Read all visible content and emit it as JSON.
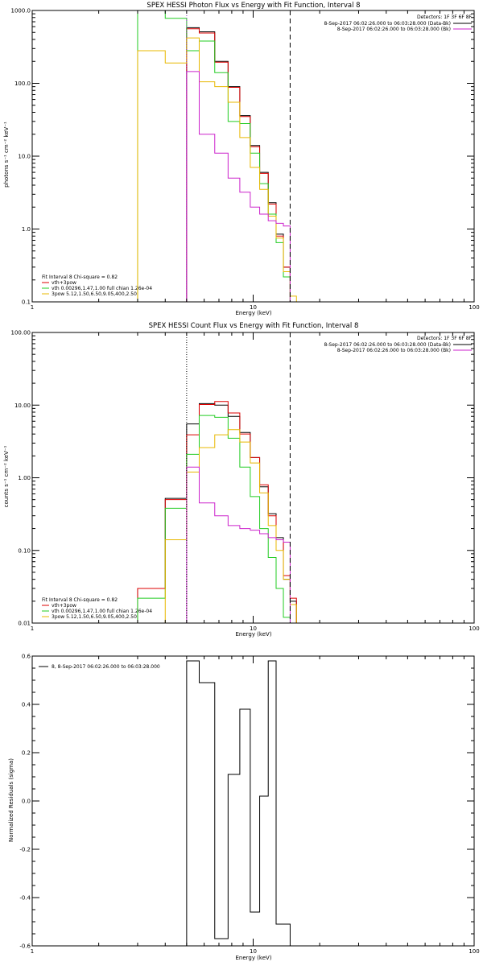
{
  "chart_data": [
    {
      "type": "line",
      "title": "SPEX HESSI Photon Flux vs Energy with Fit Function, Interval 8",
      "xlabel": "Energy (keV)",
      "ylabel": "photons s⁻¹ cm⁻² keV⁻¹",
      "xscale": "log",
      "yscale": "log",
      "xlim": [
        1,
        100
      ],
      "ylim": [
        0.1,
        1000
      ],
      "xticks": [
        {
          "v": 1,
          "label": "1"
        },
        {
          "v": 10,
          "label": "10"
        },
        {
          "v": 100,
          "label": "100"
        }
      ],
      "yticks": [
        {
          "v": 0.1,
          "label": "0.1"
        },
        {
          "v": 1,
          "label": "1.0"
        },
        {
          "v": 10,
          "label": "10.0"
        },
        {
          "v": 100,
          "label": "100.0"
        },
        {
          "v": 1000,
          "label": "1000.0"
        }
      ],
      "edges": [
        3,
        4,
        5,
        5.7,
        6.7,
        7.7,
        8.7,
        9.7,
        10.7,
        11.7,
        12.7,
        13.7,
        14.7,
        15.7,
        16.7,
        17.7
      ],
      "vlines": [
        {
          "x": 5,
          "style": "dotted",
          "color": "#9933cc"
        },
        {
          "x": 14.7,
          "style": "dashed",
          "color": "#000000"
        }
      ],
      "series": [
        {
          "name": "",
          "color": "#000000",
          "values": [
            null,
            null,
            580,
            510,
            200,
            90,
            36,
            14,
            6,
            2.3,
            0.85,
            0.3,
            null,
            null,
            null
          ]
        },
        {
          "name": "vth+3pow",
          "color": "#dd0000",
          "values": [
            null,
            null,
            560,
            490,
            195,
            88,
            35,
            13.5,
            5.8,
            2.2,
            0.8,
            0.3,
            null,
            null,
            null
          ]
        },
        {
          "name": "vth 0.00296,1.47,1.00  full chian 1.26e-04",
          "color": "#22cc22",
          "values": [
            1000,
            780,
            280,
            380,
            140,
            30,
            28,
            11,
            4.2,
            1.6,
            0.65,
            0.22,
            0.08,
            null,
            null
          ]
        },
        {
          "name": "3pow 5.12,1.50,6.50,9.05,400,2.50",
          "color": "#e8b800",
          "values": [
            280,
            190,
            420,
            105,
            90,
            55,
            18,
            7,
            3.5,
            1.5,
            0.75,
            0.26,
            0.12,
            null,
            null
          ]
        },
        {
          "name": "",
          "color": "#cc22cc",
          "values": [
            null,
            null,
            145,
            20,
            11,
            5,
            3.2,
            2,
            1.6,
            1.3,
            1.2,
            1.1,
            null,
            null,
            null
          ]
        }
      ],
      "legend_top": {
        "detectors": "Detectors: 1F 3F 6F 8F",
        "entries": [
          {
            "label": "8-Sep-2017 06:02:26.000 to 06:03:28.000 (Data-Bk)",
            "color": "#000000"
          },
          {
            "label": "8-Sep-2017 06:02:26.000 to 06:03:28.000 (Bk)",
            "color": "#cc22cc"
          }
        ]
      },
      "legend_bottom": {
        "header": "Fit Interval 8   Chi-square = 0.82"
      }
    },
    {
      "type": "line",
      "title": "SPEX HESSI Count Flux vs Energy with Fit Function, Interval 8",
      "xlabel": "Energy (keV)",
      "ylabel": "counts s⁻¹ cm⁻² keV⁻¹",
      "xscale": "log",
      "yscale": "log",
      "xlim": [
        1,
        100
      ],
      "ylim": [
        0.01,
        100
      ],
      "xticks": [
        {
          "v": 1,
          "label": "1"
        },
        {
          "v": 10,
          "label": "10"
        },
        {
          "v": 100,
          "label": "100"
        }
      ],
      "yticks": [
        {
          "v": 0.01,
          "label": "0.01"
        },
        {
          "v": 0.1,
          "label": "0.10"
        },
        {
          "v": 1,
          "label": "1.00"
        },
        {
          "v": 10,
          "label": "10.00"
        },
        {
          "v": 100,
          "label": "100.00"
        }
      ],
      "edges": [
        3,
        4,
        5,
        5.7,
        6.7,
        7.7,
        8.7,
        9.7,
        10.7,
        11.7,
        12.7,
        13.7,
        14.7,
        15.7,
        16.7,
        17.7
      ],
      "vlines": [
        {
          "x": 5,
          "style": "dotted",
          "color": "#000000"
        },
        {
          "x": 14.7,
          "style": "dashed",
          "color": "#000000"
        }
      ],
      "series": [
        {
          "name": "",
          "color": "#000000",
          "values": [
            0.03,
            0.52,
            5.5,
            10.5,
            10,
            7,
            4.2,
            1.9,
            0.75,
            0.32,
            0.15,
            0.04,
            0.02,
            null,
            null
          ]
        },
        {
          "name": "vth+3pow",
          "color": "#dd0000",
          "values": [
            0.03,
            0.5,
            3.9,
            10.2,
            11.2,
            7.8,
            4,
            1.9,
            0.8,
            0.3,
            0.14,
            0.045,
            0.022,
            null,
            null
          ]
        },
        {
          "name": "vth 0.00296,1.47,1.00  full chian 1.26e-04",
          "color": "#22cc22",
          "values": [
            0.022,
            0.38,
            2.1,
            7.2,
            6.8,
            3.5,
            1.4,
            0.55,
            0.2,
            0.08,
            0.03,
            0.012,
            null,
            null,
            null
          ]
        },
        {
          "name": "3pow 5.12,1.50,6.50,9.05,400,2.50",
          "color": "#e8b800",
          "values": [
            null,
            0.14,
            1.2,
            2.6,
            3.9,
            4.6,
            3.1,
            1.6,
            0.62,
            0.22,
            0.1,
            0.04,
            0.018,
            0.01,
            null
          ]
        },
        {
          "name": "",
          "color": "#cc22cc",
          "values": [
            null,
            null,
            1.4,
            0.45,
            0.3,
            0.22,
            0.2,
            0.19,
            0.17,
            0.15,
            0.14,
            0.13,
            null,
            null,
            null
          ]
        }
      ],
      "legend_top": {
        "detectors": "Detectors: 1F 3F 6F 8F",
        "entries": [
          {
            "label": "8-Sep-2017 06:02:26.000 to 06:03:28.000 (Data-Bk)",
            "color": "#000000"
          },
          {
            "label": "8-Sep-2017 06:02:26.000 to 06:03:28.000 (Bk)",
            "color": "#cc22cc"
          }
        ]
      },
      "legend_bottom": {
        "header": "Fit Interval 8   Chi-square = 0.82"
      }
    },
    {
      "type": "line",
      "title": "",
      "xlabel": "Energy (keV)",
      "ylabel": "Normalized Residuals (sigma)",
      "xscale": "log",
      "yscale": "linear",
      "xlim": [
        1,
        100
      ],
      "ylim": [
        -0.6,
        0.6
      ],
      "xticks": [
        {
          "v": 1,
          "label": "1"
        },
        {
          "v": 10,
          "label": "10"
        },
        {
          "v": 100,
          "label": "100"
        }
      ],
      "yticks": [
        {
          "v": -0.6,
          "label": "-0.6"
        },
        {
          "v": -0.4,
          "label": "-0.4"
        },
        {
          "v": -0.2,
          "label": "-0.2"
        },
        {
          "v": 0,
          "label": "0.0"
        },
        {
          "v": 0.2,
          "label": "0.2"
        },
        {
          "v": 0.4,
          "label": "0.4"
        },
        {
          "v": 0.6,
          "label": "0.6"
        }
      ],
      "residuals": {
        "color": "#000000",
        "points": [
          [
            5,
            0.58
          ],
          [
            5.7,
            0.49
          ],
          [
            6.7,
            -0.57
          ],
          [
            7.7,
            0.11
          ],
          [
            8.7,
            0.38
          ],
          [
            9.7,
            -0.46
          ],
          [
            10.7,
            0.02
          ],
          [
            11.7,
            0.58
          ],
          [
            12.7,
            -0.51
          ]
        ],
        "end": 14.7
      },
      "legend": {
        "label": "8,  8-Sep-2017 06:02:26.000 to 06:03:28.000"
      }
    }
  ]
}
